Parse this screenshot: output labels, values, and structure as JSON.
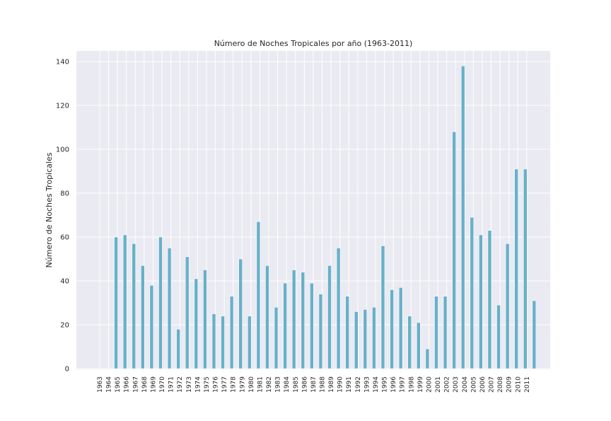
{
  "chart_data": {
    "type": "bar",
    "title": "Número de Noches Tropicales por año (1963-2011)",
    "xlabel": "",
    "ylabel": "Número de Noches Tropicales",
    "ylim": [
      0,
      145
    ],
    "yticks": [
      "0",
      "20",
      "40",
      "60",
      "80",
      "100",
      "120",
      "140"
    ],
    "grid": true,
    "categories": [
      "1963",
      "1964",
      "1965",
      "1966",
      "1967",
      "1968",
      "1969",
      "1970",
      "1971",
      "1972",
      "1973",
      "1974",
      "1975",
      "1976",
      "1977",
      "1978",
      "1979",
      "1980",
      "1981",
      "1982",
      "1983",
      "1984",
      "1985",
      "1986",
      "1987",
      "1988",
      "1989",
      "1990",
      "1991",
      "1992",
      "1993",
      "1994",
      "1995",
      "1996",
      "1997",
      "1998",
      "1999",
      "2000",
      "2001",
      "2002",
      "2003",
      "2004",
      "2005",
      "2006",
      "2007",
      "2008",
      "2009",
      "2010",
      "2011"
    ],
    "values": [
      0,
      60,
      61,
      57,
      47,
      38,
      60,
      55,
      18,
      51,
      41,
      45,
      25,
      24,
      33,
      50,
      24,
      67,
      47,
      28,
      39,
      45,
      44,
      39,
      34,
      47,
      55,
      33,
      26,
      27,
      28,
      56,
      36,
      37,
      24,
      21,
      9,
      33,
      33,
      108,
      138,
      69,
      61,
      63,
      29,
      57,
      91,
      91,
      31
    ],
    "colors": {
      "bar": "#67b0c9",
      "bar_edge": "#ffffff",
      "plot_bg": "#eaeaf2",
      "grid": "#ffffff"
    }
  }
}
